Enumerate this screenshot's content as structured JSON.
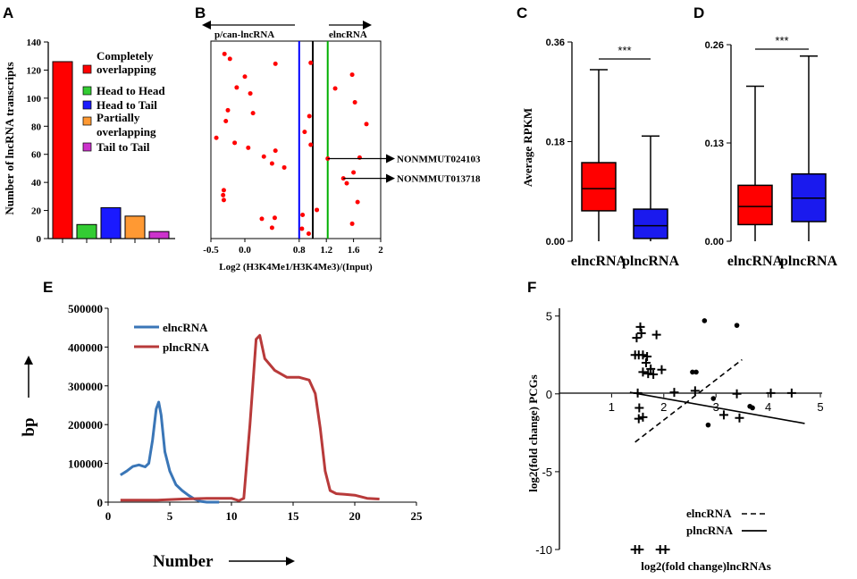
{
  "chart_data": [
    {
      "panel": "A",
      "type": "bar",
      "ylabel": "Number of lncRNA transcripts",
      "ylim": [
        0,
        140
      ],
      "yticks": [
        "0",
        "20",
        "40",
        "60",
        "80",
        "100",
        "120",
        "140"
      ],
      "categories": [
        "Completely overlapping",
        "Head to Head",
        "Head to Tail",
        "Partially overlapping",
        "Tail to Tail"
      ],
      "legend": [
        "Completely",
        "overlapping",
        "Head to Head",
        "Head to Tail",
        "Partially",
        "overlapping",
        "Tail to Tail"
      ],
      "values": [
        126,
        10,
        22,
        16,
        5
      ],
      "colors": [
        "#ff0000",
        "#33cc33",
        "#1a1aff",
        "#ff9933",
        "#cc33cc"
      ]
    },
    {
      "panel": "B",
      "type": "scatter",
      "xlabel": "Log2 (H3K4Me1/H3K4Me3)/(Input)",
      "xlim": [
        -0.5,
        2
      ],
      "ylim": [
        0,
        20
      ],
      "xticks": [
        "-0.5",
        "0.0",
        "0.8",
        "1.2",
        "1.6",
        "2"
      ],
      "xtick_values": [
        -0.5,
        0.0,
        0.8,
        1.2,
        1.6,
        2.0
      ],
      "left_arrow_label": "p/can-lncRNA",
      "right_arrow_label": "elncRNA",
      "vlines": [
        {
          "x": 0.8,
          "color": "#0000ff"
        },
        {
          "x": 1.0,
          "color": "#000000"
        },
        {
          "x": 1.22,
          "color": "#00b000"
        }
      ],
      "annotations": [
        {
          "label": "NONMMUT024103",
          "x": 1.22,
          "y": 8.1
        },
        {
          "label": "NONMMUT013718",
          "x": 1.45,
          "y": 6.1
        }
      ],
      "points": [
        [
          -0.3,
          18.7
        ],
        [
          -0.22,
          18.2
        ],
        [
          0.0,
          16.4
        ],
        [
          -0.12,
          15.3
        ],
        [
          0.08,
          14.7
        ],
        [
          0.45,
          17.7
        ],
        [
          0.97,
          17.8
        ],
        [
          1.33,
          15.2
        ],
        [
          1.58,
          16.6
        ],
        [
          1.62,
          13.8
        ],
        [
          -0.25,
          13.0
        ],
        [
          0.12,
          12.7
        ],
        [
          -0.28,
          11.9
        ],
        [
          0.95,
          12.4
        ],
        [
          0.88,
          10.8
        ],
        [
          1.79,
          11.6
        ],
        [
          -0.42,
          10.2
        ],
        [
          -0.15,
          9.7
        ],
        [
          0.05,
          9.2
        ],
        [
          0.28,
          8.3
        ],
        [
          0.45,
          8.9
        ],
        [
          0.97,
          9.5
        ],
        [
          1.22,
          8.1
        ],
        [
          0.4,
          7.6
        ],
        [
          1.69,
          8.2
        ],
        [
          1.6,
          6.7
        ],
        [
          0.58,
          7.2
        ],
        [
          1.45,
          6.1
        ],
        [
          1.5,
          5.6
        ],
        [
          -0.31,
          4.9
        ],
        [
          -0.32,
          4.4
        ],
        [
          -0.31,
          3.9
        ],
        [
          1.66,
          3.7
        ],
        [
          1.06,
          2.9
        ],
        [
          0.85,
          2.4
        ],
        [
          0.25,
          2.0
        ],
        [
          1.58,
          1.5
        ],
        [
          0.84,
          1.0
        ],
        [
          0.94,
          0.5
        ],
        [
          0.4,
          1.1
        ],
        [
          0.44,
          2.1
        ]
      ]
    },
    {
      "panel": "C",
      "type": "box",
      "ylabel": "Average RPKM",
      "ylim": [
        0,
        0.36
      ],
      "yticks": [
        "0.00",
        "0.18",
        "0.36"
      ],
      "categories": [
        "elncRNA",
        "plncRNA"
      ],
      "significance": "***",
      "boxes": [
        {
          "name": "elncRNA",
          "min": 0,
          "q1": 0.055,
          "median": 0.095,
          "q3": 0.142,
          "max": 0.31,
          "color": "#ff0000"
        },
        {
          "name": "plncRNA",
          "min": 0,
          "q1": 0.005,
          "median": 0.028,
          "q3": 0.058,
          "max": 0.19,
          "color": "#1a1aee"
        }
      ]
    },
    {
      "panel": "D",
      "type": "box",
      "ylabel": "",
      "ylim": [
        0,
        0.26
      ],
      "yticks": [
        "0.00",
        "0.13",
        "0.26"
      ],
      "categories": [
        "elncRNA",
        "plncRNA"
      ],
      "significance": "***",
      "boxes": [
        {
          "name": "elncRNA",
          "min": 0,
          "q1": 0.022,
          "median": 0.046,
          "q3": 0.074,
          "max": 0.205,
          "color": "#ff0000"
        },
        {
          "name": "plncRNA",
          "min": 0,
          "q1": 0.026,
          "median": 0.057,
          "q3": 0.089,
          "max": 0.245,
          "color": "#1a1aee"
        }
      ]
    },
    {
      "panel": "E",
      "type": "line",
      "xlabel": "Number",
      "ylabel": "bp",
      "xlim": [
        0,
        25
      ],
      "ylim": [
        0,
        500000
      ],
      "xticks": [
        "0",
        "5",
        "10",
        "15",
        "20",
        "25"
      ],
      "yticks": [
        "0",
        "100000",
        "200000",
        "300000",
        "400000",
        "500000"
      ],
      "series": [
        {
          "name": "elncRNA",
          "color": "#3a76b7",
          "points": [
            [
              1,
              70000
            ],
            [
              1.5,
              80000
            ],
            [
              2,
              92000
            ],
            [
              2.5,
              96000
            ],
            [
              3,
              91000
            ],
            [
              3.3,
              100000
            ],
            [
              3.6,
              160000
            ],
            [
              3.9,
              240000
            ],
            [
              4.1,
              258000
            ],
            [
              4.3,
              225000
            ],
            [
              4.6,
              130000
            ],
            [
              5,
              80000
            ],
            [
              5.5,
              45000
            ],
            [
              6,
              30000
            ],
            [
              6.5,
              18000
            ],
            [
              7,
              8000
            ],
            [
              7.5,
              2000
            ],
            [
              8,
              0
            ],
            [
              9,
              0
            ]
          ]
        },
        {
          "name": "plncRNA",
          "color": "#b83a3a",
          "points": [
            [
              1,
              5000
            ],
            [
              4,
              5000
            ],
            [
              6,
              8000
            ],
            [
              8,
              10000
            ],
            [
              10,
              10000
            ],
            [
              10.6,
              4000
            ],
            [
              11,
              10000
            ],
            [
              11.5,
              200000
            ],
            [
              12,
              420000
            ],
            [
              12.3,
              430000
            ],
            [
              12.7,
              370000
            ],
            [
              13.5,
              340000
            ],
            [
              14.5,
              322000
            ],
            [
              15.5,
              322000
            ],
            [
              16.3,
              315000
            ],
            [
              16.8,
              280000
            ],
            [
              17.2,
              190000
            ],
            [
              17.6,
              80000
            ],
            [
              18,
              30000
            ],
            [
              18.5,
              22000
            ],
            [
              19.2,
              20000
            ],
            [
              20,
              18000
            ],
            [
              20.5,
              14000
            ],
            [
              21,
              10000
            ],
            [
              22,
              8000
            ]
          ]
        }
      ]
    },
    {
      "panel": "F",
      "type": "scatter",
      "xlabel": "log2(fold change)lncRNAs",
      "ylabel": "log2(fold change) PCGs",
      "xlim": [
        0,
        5
      ],
      "ylim": [
        -10,
        5.5
      ],
      "xticks": [
        "1",
        "2",
        "3",
        "4",
        "5"
      ],
      "yticks": [
        "5",
        "0",
        "-5",
        "-10"
      ],
      "legend": [
        "elncRNA",
        "plncRNA"
      ],
      "elnc_points": [
        [
          2.78,
          4.7
        ],
        [
          3.4,
          4.4
        ],
        [
          2.55,
          1.4
        ],
        [
          2.62,
          1.4
        ],
        [
          2.95,
          -0.3
        ],
        [
          3.65,
          -0.8
        ],
        [
          3.7,
          -0.9
        ],
        [
          2.85,
          -2.0
        ]
      ],
      "plnc_points": [
        [
          1.55,
          4.3
        ],
        [
          1.57,
          3.9
        ],
        [
          1.86,
          3.8
        ],
        [
          1.48,
          3.6
        ],
        [
          1.45,
          2.5
        ],
        [
          1.52,
          2.5
        ],
        [
          1.6,
          2.5
        ],
        [
          1.68,
          2.4
        ],
        [
          1.66,
          2.0
        ],
        [
          1.75,
          1.6
        ],
        [
          1.6,
          1.4
        ],
        [
          1.96,
          1.55
        ],
        [
          1.7,
          1.3
        ],
        [
          1.8,
          1.25
        ],
        [
          2.2,
          0.1
        ],
        [
          2.6,
          0.2
        ],
        [
          3.4,
          0.0
        ],
        [
          4.05,
          0.05
        ],
        [
          4.45,
          0.05
        ],
        [
          1.5,
          0.05
        ],
        [
          1.53,
          -0.9
        ],
        [
          1.6,
          -1.5
        ],
        [
          1.52,
          -1.6
        ],
        [
          3.15,
          -1.35
        ],
        [
          3.45,
          -1.55
        ],
        [
          1.45,
          -10
        ],
        [
          1.53,
          -10
        ],
        [
          1.93,
          -10
        ],
        [
          2.03,
          -10
        ]
      ],
      "fit_lines": [
        {
          "name": "elncRNA",
          "style": "dashed",
          "from": [
            1.45,
            -3.1
          ],
          "to": [
            3.5,
            2.2
          ]
        },
        {
          "name": "plncRNA",
          "style": "solid",
          "from": [
            1.35,
            0.1
          ],
          "to": [
            4.7,
            -1.9
          ]
        }
      ]
    }
  ],
  "panel_labels": [
    "A",
    "B",
    "C",
    "D",
    "E",
    "F"
  ]
}
